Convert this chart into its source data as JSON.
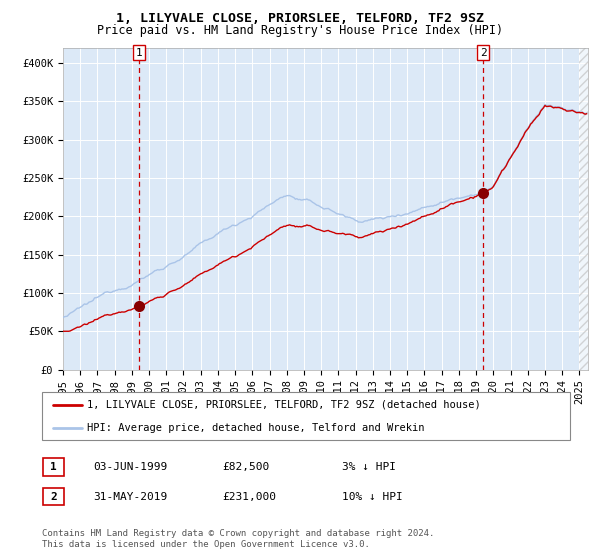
{
  "title": "1, LILYVALE CLOSE, PRIORSLEE, TELFORD, TF2 9SZ",
  "subtitle": "Price paid vs. HM Land Registry's House Price Index (HPI)",
  "ylim": [
    0,
    420000
  ],
  "xlim_start": 1995.0,
  "xlim_end": 2025.5,
  "yticks": [
    0,
    50000,
    100000,
    150000,
    200000,
    250000,
    300000,
    350000,
    400000
  ],
  "ytick_labels": [
    "£0",
    "£50K",
    "£100K",
    "£150K",
    "£200K",
    "£250K",
    "£300K",
    "£350K",
    "£400K"
  ],
  "xtick_years": [
    1995,
    1996,
    1997,
    1998,
    1999,
    2000,
    2001,
    2002,
    2003,
    2004,
    2005,
    2006,
    2007,
    2008,
    2009,
    2010,
    2011,
    2012,
    2013,
    2014,
    2015,
    2016,
    2017,
    2018,
    2019,
    2020,
    2021,
    2022,
    2023,
    2024,
    2025
  ],
  "plot_bg_color": "#dce9f7",
  "hpi_line_color": "#aac4e8",
  "price_line_color": "#cc0000",
  "marker_color": "#880000",
  "vline_color": "#cc0000",
  "sale1_year": 1999.42,
  "sale1_price": 82500,
  "sale2_year": 2019.41,
  "sale2_price": 231000,
  "legend_label1": "1, LILYVALE CLOSE, PRIORSLEE, TELFORD, TF2 9SZ (detached house)",
  "legend_label2": "HPI: Average price, detached house, Telford and Wrekin",
  "table_row1_num": "1",
  "table_row1_date": "03-JUN-1999",
  "table_row1_price": "£82,500",
  "table_row1_hpi": "3% ↓ HPI",
  "table_row2_num": "2",
  "table_row2_date": "31-MAY-2019",
  "table_row2_price": "£231,000",
  "table_row2_hpi": "10% ↓ HPI",
  "footnote_line1": "Contains HM Land Registry data © Crown copyright and database right 2024.",
  "footnote_line2": "This data is licensed under the Open Government Licence v3.0.",
  "title_fontsize": 9.5,
  "subtitle_fontsize": 8.5,
  "tick_fontsize": 7.5,
  "legend_fontsize": 7.5
}
